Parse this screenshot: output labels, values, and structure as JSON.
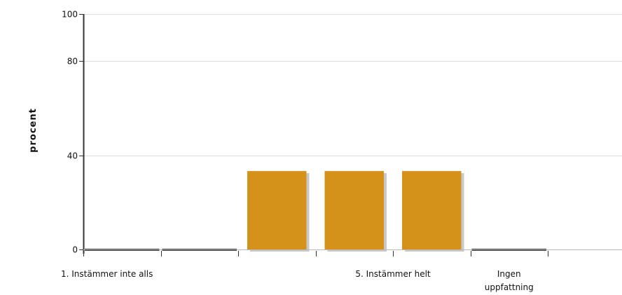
{
  "chart_data": {
    "type": "bar",
    "categories": [
      "1. Instämmer inte alls",
      "",
      "",
      "",
      "5. Instämmer helt",
      "Ingen uppfattning"
    ],
    "category_label_lines": [
      [
        "1. Instämmer inte alls"
      ],
      [
        ""
      ],
      [
        ""
      ],
      [
        ""
      ],
      [
        "5. Instämmer helt"
      ],
      [
        "Ingen",
        "uppfattning"
      ]
    ],
    "values": [
      0,
      0,
      33.3,
      33.3,
      33.3,
      0
    ],
    "yticks": [
      0,
      40,
      80,
      100
    ],
    "ylabel": "procent",
    "xlabel": "",
    "ylim": [
      0,
      100
    ],
    "grid": true,
    "bar_color": "#d4921a",
    "bar_shadow_color": "#c8c8c8",
    "zero_line_color": "#333333",
    "grid_color": "#dddddd"
  }
}
